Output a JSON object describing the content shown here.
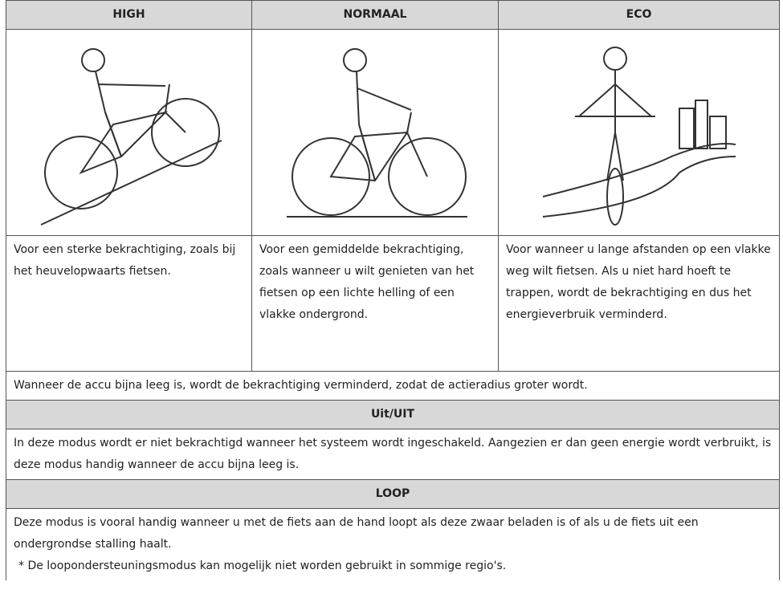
{
  "table": {
    "headers": [
      "HIGH",
      "NORMAAL",
      "ECO"
    ],
    "descriptions": [
      "Voor een sterke bekrachtiging, zoals bij het heuvelopwaarts fietsen.",
      "Voor een gemiddelde bekrachtiging, zoals wanneer u wilt genieten van het fietsen op een lichte helling of een vlakke ondergrond.",
      "Voor wanneer u lange afstanden op een vlakke weg wilt fietsen. Als u niet hard hoeft te trappen, wordt de bekrachtiging en dus het energieverbruik verminderd."
    ],
    "battery_note": "Wanneer de accu bijna leeg is, wordt de bekrachtiging verminderd, zodat de actieradius groter wordt.",
    "sections": [
      {
        "title": "Uit/UIT",
        "text": "In deze modus wordt er niet bekrachtigd wanneer het systeem wordt ingeschakeld. Aangezien er dan geen energie wordt verbruikt, is deze modus handig wanneer de accu bijna leeg is."
      },
      {
        "title": "LOOP",
        "text": "Deze modus is vooral handig wanneer u met de fiets aan de hand loopt als deze zwaar beladen is of als u de fiets uit een ondergrondse stalling haalt."
      }
    ],
    "footnote": "* De loopondersteuningsmodus kan mogelijk niet worden gebruikt in sommige regio's."
  }
}
